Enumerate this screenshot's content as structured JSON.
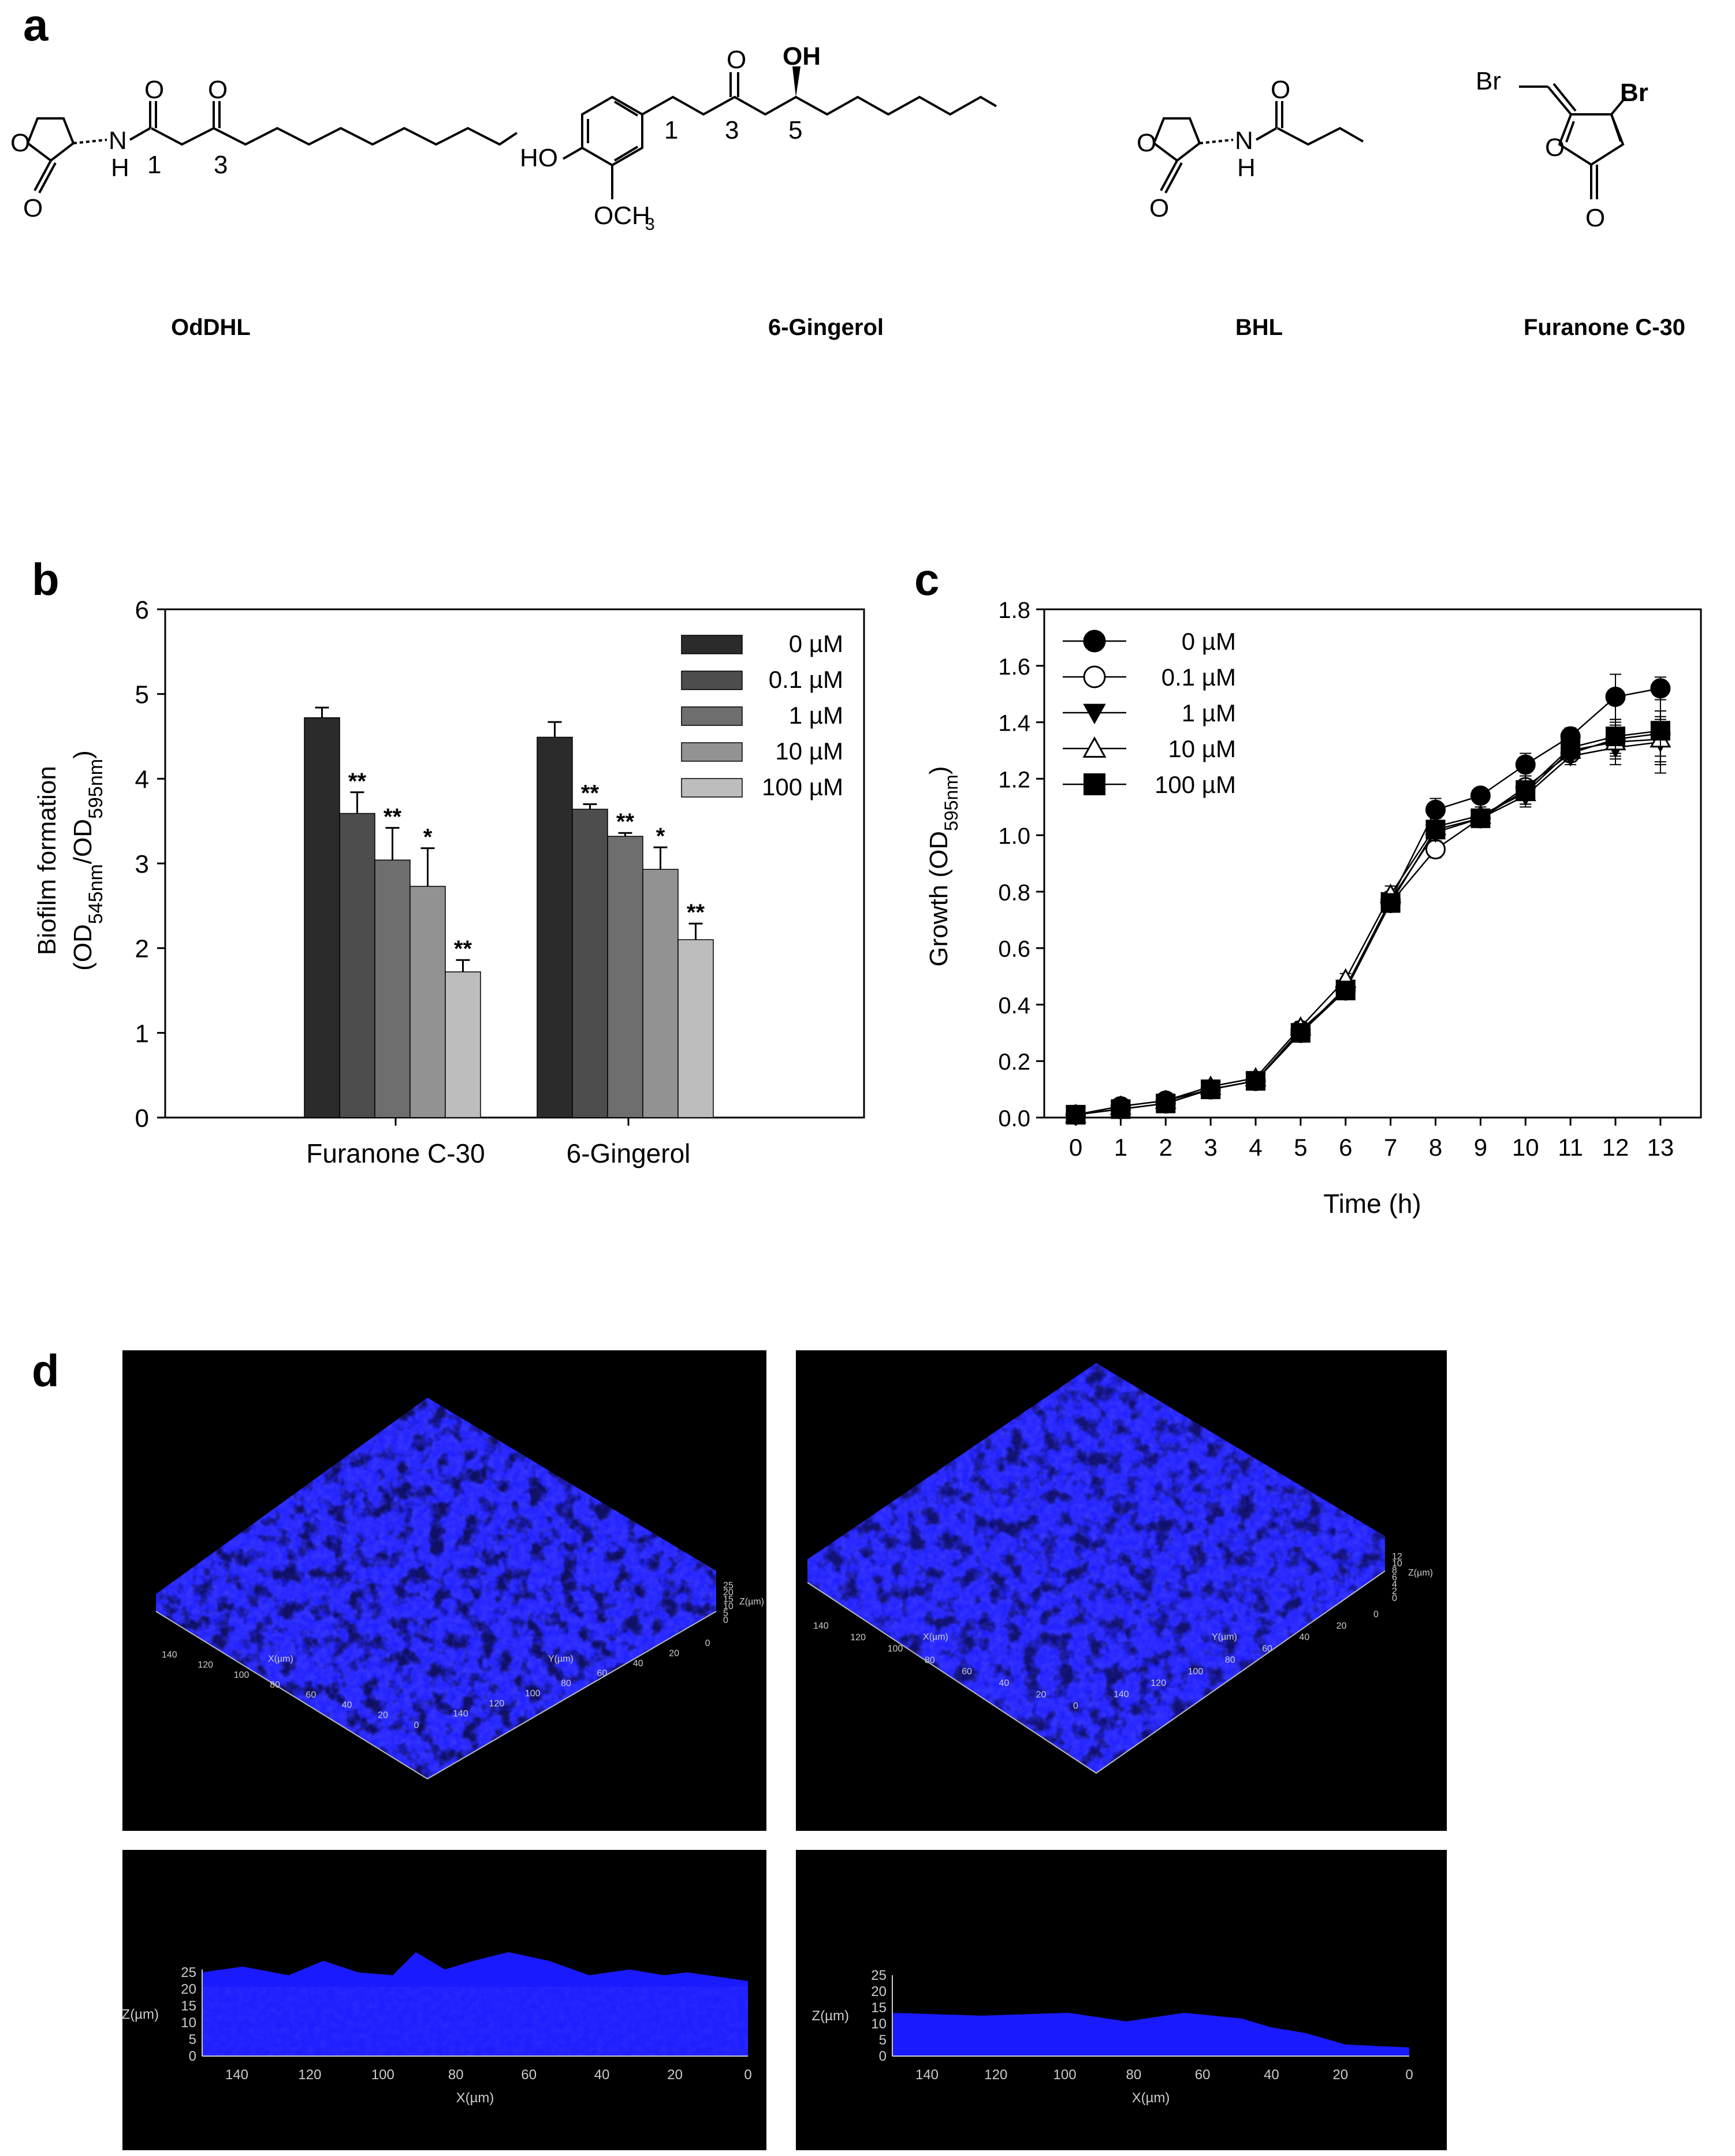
{
  "panels": {
    "a": "a",
    "b": "b",
    "c": "c",
    "d": "d"
  },
  "compounds": [
    {
      "name": "OdDHL",
      "atoms": {
        "O_ring": "O",
        "O_carbonyl": "O",
        "N": "N",
        "H": "H",
        "O_amide": "O",
        "O_keto": "O",
        "pos1": "1",
        "pos3": "3"
      }
    },
    {
      "name": "6-Gingerol",
      "atoms": {
        "HO": "HO",
        "OCH": "OCH",
        "sub3": "3",
        "O_keto": "O",
        "OH": "OH",
        "pos1": "1",
        "pos3": "3",
        "pos5": "5"
      }
    },
    {
      "name": "BHL",
      "atoms": {
        "O_ring": "O",
        "O_carbonyl": "O",
        "N": "N",
        "H": "H",
        "O_amide": "O"
      }
    },
    {
      "name": "Furanone C-30",
      "atoms": {
        "Br1": "Br",
        "Br2": "Br",
        "O_ring": "O",
        "O_carbonyl": "O"
      }
    }
  ],
  "colors": {
    "bar_0": "#2b2b2b",
    "bar_0.1": "#4d4d4d",
    "bar_1": "#6e6e6e",
    "bar_10": "#929292",
    "bar_100": "#bdbdbd",
    "cv_signal": "#1a1aff",
    "cv_background": "#000000"
  },
  "chart_data": [
    {
      "id": "b",
      "type": "bar",
      "ylabel_line1": "Biofilm formation",
      "ylabel_line2": {
        "p1": "(OD",
        "s1": "545nm",
        "p2": "/OD",
        "s2": "595nm",
        "p3": ")"
      },
      "ylim": [
        0,
        6
      ],
      "yticks": [
        "0",
        "1",
        "2",
        "3",
        "4",
        "5",
        "6"
      ],
      "categories": [
        "Furanone C-30",
        "6-Gingerol"
      ],
      "series": [
        {
          "name": "0 µM",
          "values": [
            4.72,
            4.49
          ],
          "errors": [
            0.12,
            0.18
          ],
          "sig": [
            "",
            ""
          ]
        },
        {
          "name": "0.1 µM",
          "values": [
            3.59,
            3.64
          ],
          "errors": [
            0.25,
            0.06
          ],
          "sig": [
            "**",
            "**"
          ]
        },
        {
          "name": "1 µM",
          "values": [
            3.04,
            3.32
          ],
          "errors": [
            0.38,
            0.04
          ],
          "sig": [
            "**",
            "**"
          ]
        },
        {
          "name": "10 µM",
          "values": [
            2.73,
            2.93
          ],
          "errors": [
            0.45,
            0.26
          ],
          "sig": [
            "*",
            "*"
          ]
        },
        {
          "name": "100 µM",
          "values": [
            1.72,
            2.1
          ],
          "errors": [
            0.14,
            0.19
          ],
          "sig": [
            "**",
            "**"
          ]
        }
      ]
    },
    {
      "id": "c",
      "type": "line",
      "xlabel": "Time (h)",
      "ylabel": {
        "p1": "Growth (OD",
        "s1": "595nm",
        "p2": ")"
      },
      "xlim": [
        -0.7,
        13.9
      ],
      "ylim": [
        0,
        1.8
      ],
      "xticks": [
        "0",
        "1",
        "2",
        "3",
        "4",
        "5",
        "6",
        "7",
        "8",
        "9",
        "10",
        "11",
        "12",
        "13"
      ],
      "yticks": [
        "0.0",
        "0.2",
        "0.4",
        "0.6",
        "0.8",
        "1.0",
        "1.2",
        "1.4",
        "1.6",
        "1.8"
      ],
      "x": [
        0,
        1,
        2,
        3,
        4,
        5,
        6,
        7,
        8,
        9,
        10,
        11,
        12,
        13
      ],
      "series": [
        {
          "name": "0 µM",
          "marker": "circle-filled",
          "values": [
            0.01,
            0.04,
            0.06,
            0.1,
            0.13,
            0.31,
            0.45,
            0.77,
            1.09,
            1.14,
            1.25,
            1.35,
            1.49,
            1.52
          ],
          "errors": [
            0.01,
            0.01,
            0.01,
            0.01,
            0.01,
            0.02,
            0.02,
            0.03,
            0.04,
            0.02,
            0.04,
            0.03,
            0.08,
            0.04
          ]
        },
        {
          "name": "0.1 µM",
          "marker": "circle-open",
          "values": [
            0.01,
            0.03,
            0.05,
            0.1,
            0.13,
            0.3,
            0.46,
            0.76,
            0.95,
            1.06,
            1.17,
            1.29,
            1.34,
            1.36
          ],
          "errors": [
            0.01,
            0.01,
            0.01,
            0.01,
            0.01,
            0.02,
            0.02,
            0.03,
            0.03,
            0.03,
            0.04,
            0.03,
            0.06,
            0.08
          ]
        },
        {
          "name": "1 µM",
          "marker": "triangle-down-filled",
          "values": [
            0.01,
            0.03,
            0.05,
            0.1,
            0.13,
            0.3,
            0.46,
            0.77,
            1.01,
            1.06,
            1.14,
            1.28,
            1.31,
            1.33
          ],
          "errors": [
            0.01,
            0.01,
            0.01,
            0.01,
            0.01,
            0.02,
            0.02,
            0.03,
            0.03,
            0.03,
            0.04,
            0.03,
            0.06,
            0.08
          ]
        },
        {
          "name": "10 µM",
          "marker": "triangle-up-open",
          "values": [
            0.01,
            0.04,
            0.06,
            0.11,
            0.14,
            0.32,
            0.49,
            0.79,
            1.03,
            1.07,
            1.15,
            1.3,
            1.33,
            1.34
          ],
          "errors": [
            0.01,
            0.01,
            0.01,
            0.01,
            0.01,
            0.02,
            0.02,
            0.03,
            0.03,
            0.03,
            0.04,
            0.03,
            0.06,
            0.08
          ]
        },
        {
          "name": "100 µM",
          "marker": "square-filled",
          "values": [
            0.01,
            0.03,
            0.05,
            0.1,
            0.13,
            0.3,
            0.45,
            0.76,
            1.02,
            1.06,
            1.16,
            1.31,
            1.35,
            1.37
          ],
          "errors": [
            0.01,
            0.01,
            0.01,
            0.01,
            0.01,
            0.02,
            0.02,
            0.03,
            0.03,
            0.03,
            0.05,
            0.03,
            0.06,
            0.15
          ]
        }
      ]
    }
  ],
  "cv": {
    "iso_left": {
      "x_label": "X(µm)",
      "y_label": "Y(µm)",
      "z_label": "Z(µm)",
      "x_ticks": [
        "0",
        "20",
        "40",
        "60",
        "80",
        "100",
        "120",
        "140"
      ],
      "y_ticks": [
        "0",
        "20",
        "40",
        "60",
        "80",
        "100",
        "120",
        "140"
      ],
      "z_ticks": [
        "25",
        "20",
        "15",
        "10",
        "5",
        "0"
      ]
    },
    "iso_right": {
      "x_label": "X(µm)",
      "y_label": "Y(µm)",
      "z_label": "Z(µm)",
      "x_ticks": [
        "0",
        "20",
        "40",
        "60",
        "80",
        "100",
        "120",
        "140"
      ],
      "y_ticks": [
        "0",
        "20",
        "40",
        "60",
        "80",
        "100",
        "120",
        "140"
      ],
      "z_ticks": [
        "12",
        "10",
        "8",
        "6",
        "4",
        "2",
        "0"
      ]
    },
    "side_left": {
      "x_label": "X(µm)",
      "z_label": "Z(µm)",
      "x_ticks": [
        "140",
        "120",
        "100",
        "80",
        "60",
        "40",
        "20",
        "0"
      ],
      "z_ticks": [
        "25",
        "20",
        "15",
        "10",
        "5",
        "0"
      ]
    },
    "side_right": {
      "x_label": "X(µm)",
      "z_label": "Z(µm)",
      "x_ticks": [
        "140",
        "120",
        "100",
        "80",
        "60",
        "40",
        "20",
        "0"
      ],
      "z_ticks": [
        "25",
        "20",
        "15",
        "10",
        "5",
        "0"
      ]
    }
  }
}
